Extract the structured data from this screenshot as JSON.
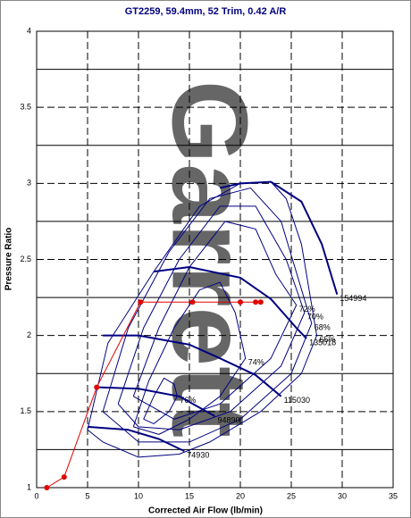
{
  "chart_data": {
    "type": "line",
    "title": "GT2259, 59.4mm, 52 Trim, 0.42 A/R",
    "x_label": "Corrected Air Flow (lb/min)",
    "y_label": "Pressure Ratio",
    "watermark": "Garrett",
    "xlim": [
      0,
      35
    ],
    "ylim": [
      1,
      4
    ],
    "xticks": [
      0,
      5,
      10,
      15,
      20,
      25,
      30,
      35
    ],
    "yticks": [
      1,
      1.5,
      2,
      2.5,
      3,
      3.5,
      4
    ],
    "y_minor_ticks": [
      1.25,
      1.75,
      2.25,
      2.75,
      3.25,
      3.75
    ],
    "grid": true,
    "series": [
      {
        "name": "65%",
        "color": "#000080",
        "line_width": 1,
        "x": [
          5,
          7,
          11.5,
          16,
          20,
          23,
          24.5,
          26,
          27.5,
          26,
          22,
          17,
          14,
          10,
          6.5,
          5
        ],
        "y": [
          1.38,
          1.95,
          2.42,
          2.85,
          3.0,
          3.01,
          2.9,
          2.6,
          2.0,
          1.75,
          1.5,
          1.3,
          1.22,
          1.2,
          1.3,
          1.38
        ]
      },
      {
        "name": "68%",
        "color": "#000080",
        "line_width": 1,
        "x": [
          6.5,
          9,
          13,
          17,
          21,
          24,
          27,
          25,
          20,
          15,
          10,
          6.5
        ],
        "y": [
          1.5,
          2.05,
          2.55,
          2.9,
          2.97,
          2.75,
          2.08,
          1.75,
          1.45,
          1.3,
          1.3,
          1.5
        ]
      },
      {
        "name": "70%",
        "color": "#000080",
        "line_width": 1,
        "x": [
          8,
          10.5,
          14,
          18,
          21.5,
          24.5,
          26.3,
          24,
          19,
          14,
          10,
          8
        ],
        "y": [
          1.55,
          2.05,
          2.5,
          2.85,
          2.85,
          2.5,
          2.15,
          1.8,
          1.5,
          1.38,
          1.4,
          1.55
        ]
      },
      {
        "name": "72%",
        "color": "#000080",
        "line_width": 1,
        "x": [
          9.5,
          12,
          15,
          18.5,
          21.5,
          23.5,
          25.5,
          23,
          18,
          13.5,
          9.5
        ],
        "y": [
          1.6,
          2.05,
          2.45,
          2.75,
          2.7,
          2.4,
          2.2,
          1.85,
          1.55,
          1.45,
          1.6
        ]
      },
      {
        "name": "74%",
        "color": "#000080",
        "line_width": 1,
        "x": [
          9.5,
          11,
          13.5,
          16,
          18,
          19.5,
          20.5,
          18,
          15,
          12,
          9.5
        ],
        "y": [
          1.4,
          1.7,
          2.05,
          2.3,
          2.35,
          2.15,
          1.85,
          1.6,
          1.45,
          1.35,
          1.4
        ]
      },
      {
        "name": "76%",
        "color": "#000080",
        "line_width": 1,
        "x": [
          10.5,
          11.5,
          12.5,
          13.5,
          13.8,
          13,
          11.5,
          10.5
        ],
        "y": [
          1.45,
          1.6,
          1.72,
          1.68,
          1.6,
          1.5,
          1.42,
          1.45
        ]
      },
      {
        "name": "154994",
        "color": "#000080",
        "line_width": 2,
        "x": [
          18,
          20,
          23,
          26,
          28,
          29.5
        ],
        "y": [
          2.97,
          3.0,
          3.01,
          2.88,
          2.6,
          2.27
        ]
      },
      {
        "name": "135018",
        "color": "#000080",
        "line_width": 2,
        "x": [
          11.5,
          15,
          20,
          23,
          25.5,
          26.5
        ],
        "y": [
          2.42,
          2.45,
          2.38,
          2.24,
          2.05,
          1.98
        ]
      },
      {
        "name": "115030",
        "color": "#000080",
        "line_width": 2,
        "x": [
          6.5,
          10,
          15,
          18,
          21.5,
          24
        ],
        "y": [
          2.0,
          2.0,
          1.94,
          1.85,
          1.74,
          1.6
        ]
      },
      {
        "name": "94890",
        "color": "#000080",
        "line_width": 2,
        "x": [
          6,
          10,
          14,
          17.5
        ],
        "y": [
          1.66,
          1.65,
          1.6,
          1.47
        ]
      },
      {
        "name": "74930",
        "color": "#000080",
        "line_width": 2,
        "x": [
          5,
          9,
          12,
          14.5
        ],
        "y": [
          1.4,
          1.38,
          1.32,
          1.24
        ]
      },
      {
        "color": "#e00000",
        "line_width": 1,
        "markers": true,
        "x": [
          1,
          2.7,
          5.9,
          10.2,
          15.3,
          20,
          21.5,
          22
        ],
        "y": [
          1,
          1.07,
          1.66,
          2.22,
          2.22,
          2.22,
          2.22,
          2.22
        ]
      }
    ]
  }
}
